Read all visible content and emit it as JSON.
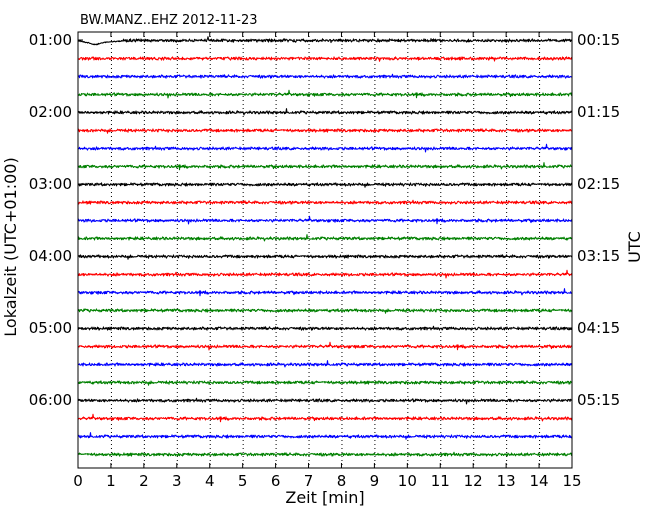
{
  "chart_data": {
    "type": "line",
    "title": "BW.MANZ..EHZ 2012-11-23",
    "xlabel": "Zeit  [min]",
    "ylabel_left": "Lokalzeit (UTC+01:00)",
    "ylabel_right": "UTC",
    "xlim": [
      0,
      15
    ],
    "x_ticks": [
      0,
      1,
      2,
      3,
      4,
      5,
      6,
      7,
      8,
      9,
      10,
      11,
      12,
      13,
      14,
      15
    ],
    "left_tick_labels": [
      "01:00",
      "02:00",
      "03:00",
      "04:00",
      "05:00",
      "06:00"
    ],
    "right_tick_labels": [
      "00:15",
      "01:15",
      "02:15",
      "03:15",
      "04:15",
      "05:15"
    ],
    "grid": "vertical-dotted",
    "trace_minutes": 15,
    "series": [
      {
        "start_utc": "00:00",
        "color": "#000000"
      },
      {
        "start_utc": "00:15",
        "color": "#ff0000"
      },
      {
        "start_utc": "00:30",
        "color": "#0000ff"
      },
      {
        "start_utc": "00:45",
        "color": "#008000"
      },
      {
        "start_utc": "01:00",
        "color": "#000000"
      },
      {
        "start_utc": "01:15",
        "color": "#ff0000"
      },
      {
        "start_utc": "01:30",
        "color": "#0000ff"
      },
      {
        "start_utc": "01:45",
        "color": "#008000"
      },
      {
        "start_utc": "02:00",
        "color": "#000000"
      },
      {
        "start_utc": "02:15",
        "color": "#ff0000"
      },
      {
        "start_utc": "02:30",
        "color": "#0000ff"
      },
      {
        "start_utc": "02:45",
        "color": "#008000"
      },
      {
        "start_utc": "03:00",
        "color": "#000000"
      },
      {
        "start_utc": "03:15",
        "color": "#ff0000"
      },
      {
        "start_utc": "03:30",
        "color": "#0000ff"
      },
      {
        "start_utc": "03:45",
        "color": "#008000"
      },
      {
        "start_utc": "04:00",
        "color": "#000000"
      },
      {
        "start_utc": "04:15",
        "color": "#ff0000"
      },
      {
        "start_utc": "04:30",
        "color": "#0000ff"
      },
      {
        "start_utc": "04:45",
        "color": "#008000"
      },
      {
        "start_utc": "05:00",
        "color": "#000000"
      },
      {
        "start_utc": "05:15",
        "color": "#ff0000"
      },
      {
        "start_utc": "05:30",
        "color": "#0000ff"
      },
      {
        "start_utc": "05:45",
        "color": "#008000"
      }
    ]
  }
}
